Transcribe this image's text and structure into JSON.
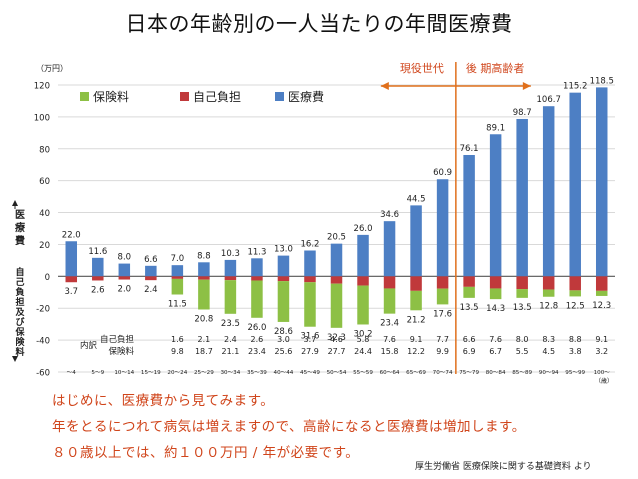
{
  "title": "日本の年齢別の一人当たりの年間医療費",
  "chart_data": {
    "type": "bar",
    "unit": "（万円）",
    "x_unit": "（歳）",
    "ylim": [
      -60,
      120
    ],
    "yticks": [
      "120",
      "100",
      "80",
      "60",
      "40",
      "20",
      "0",
      "-20",
      "-40",
      "-60"
    ],
    "upper_axis_label": "医療費",
    "lower_axis_label": "自己負担及び保険料",
    "legend_position": "top-left",
    "colors": {
      "insurance": "#8dc045",
      "self": "#c0393b",
      "medical": "#4d7fc4",
      "divider": "#e0701c"
    },
    "categories": [
      "～4",
      "5～9",
      "10～14",
      "15～19",
      "20～24",
      "25～29",
      "30～34",
      "35～39",
      "40～44",
      "45～49",
      "50～54",
      "55～59",
      "60～64",
      "65～69",
      "70～74",
      "75～79",
      "80～84",
      "85～89",
      "90～94",
      "95～99",
      "100～"
    ],
    "series": [
      {
        "name": "保険料",
        "values": [
          0,
          0,
          0,
          0,
          9.8,
          18.7,
          21.1,
          23.4,
          25.6,
          27.9,
          27.7,
          24.4,
          15.8,
          12.2,
          9.9,
          6.9,
          6.7,
          5.5,
          4.5,
          3.8,
          3.2
        ]
      },
      {
        "name": "自己負担",
        "values": [
          3.7,
          2.6,
          2.0,
          2.4,
          1.6,
          2.1,
          2.4,
          2.6,
          3.0,
          3.7,
          4.6,
          5.8,
          7.6,
          9.1,
          7.7,
          6.6,
          7.6,
          8.0,
          8.3,
          8.8,
          9.1
        ]
      },
      {
        "name": "医療費",
        "values": [
          22.0,
          11.6,
          8.0,
          6.6,
          7.0,
          8.8,
          10.3,
          11.3,
          13.0,
          16.2,
          20.5,
          26.0,
          34.6,
          44.5,
          60.9,
          76.1,
          89.1,
          98.7,
          106.7,
          115.2,
          118.5
        ]
      }
    ],
    "medical_labels": [
      "22.0",
      "11.6",
      "8.0",
      "6.6",
      "7.0",
      "8.8",
      "10.3",
      "11.3",
      "13.0",
      "16.2",
      "20.5",
      "26.0",
      "34.6",
      "44.5",
      "60.9",
      "76.1",
      "89.1",
      "98.7",
      "106.7",
      "115.2",
      "118.5"
    ],
    "negative_labels": [
      "3.7",
      "2.6",
      "2.0",
      "2.4",
      "11.5",
      "20.8",
      "23.5",
      "26.0",
      "28.6",
      "31.6",
      "32.3",
      "30.2",
      "23.4",
      "21.2",
      "17.6",
      "13.5",
      "14.3",
      "13.5",
      "12.8",
      "12.5",
      "12.3"
    ],
    "breakdown": {
      "header": "内訳",
      "self_label": "自己負担",
      "insurance_label": "保険料",
      "self_values": [
        "",
        "",
        "",
        "",
        "1.6",
        "2.1",
        "2.4",
        "2.6",
        "3.0",
        "3.7",
        "4.6",
        "5.8",
        "7.6",
        "9.1",
        "7.7",
        "6.6",
        "7.6",
        "8.0",
        "8.3",
        "8.8",
        "9.1"
      ],
      "insurance_values": [
        "",
        "",
        "",
        "",
        "9.8",
        "18.7",
        "21.1",
        "23.4",
        "25.6",
        "27.9",
        "27.7",
        "24.4",
        "15.8",
        "12.2",
        "9.9",
        "6.9",
        "6.7",
        "5.5",
        "4.5",
        "3.8",
        "3.2"
      ]
    },
    "annotations": {
      "working": "現役世代",
      "elderly": "後 期高齢者"
    }
  },
  "notes": [
    "はじめに、医療費から見てみます。",
    "年をとるにつれて病気は増えますので、高齢になると医療費は増加します。",
    "８０歳以上では、約１００万円 / 年が必要です。"
  ],
  "source": "厚生労働省 医療保険に関する基礎資料 より"
}
